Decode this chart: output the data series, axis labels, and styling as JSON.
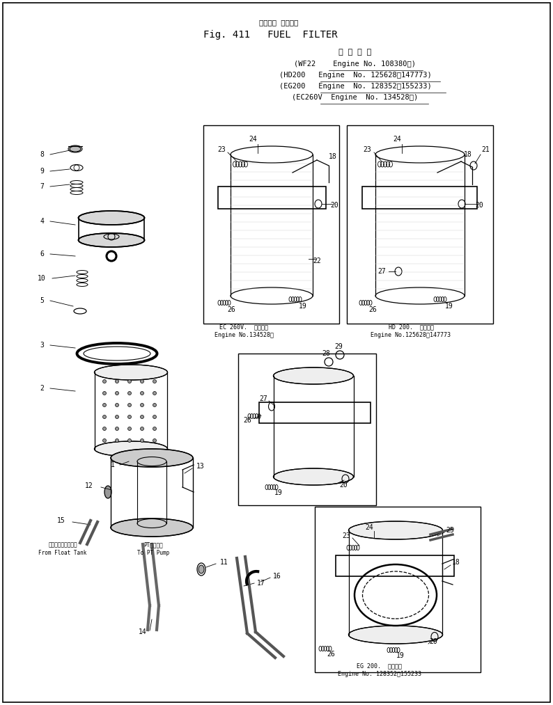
{
  "title_jp": "フェエル フイルタ",
  "title_en": "Fig. 411   FUEL  FILTER",
  "header_jp": "適 用 号 機",
  "spec_lines": [
    "(WF22    Engine No. 108380～)",
    "(HD200   Engine  No. 125628～147773)",
    "(EG200   Engine  No. 128352～155233)",
    "(EC260V  Engine  No. 134528～)"
  ],
  "bg_color": "#ffffff",
  "line_color": "#000000",
  "text_color": "#000000",
  "fig_width": 7.94,
  "fig_height": 10.13
}
